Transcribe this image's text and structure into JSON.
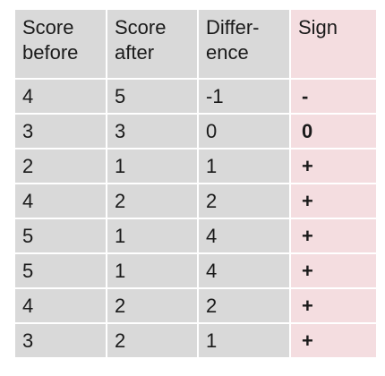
{
  "headers": {
    "before_line1": "Score",
    "before_line2": "before",
    "after_line1": "Score",
    "after_line2": "after",
    "diff_line1": "Differ-",
    "diff_line2": "ence",
    "sign": "Sign"
  },
  "rows": [
    {
      "before": "4",
      "after": "5",
      "difference": "-1",
      "sign": "-"
    },
    {
      "before": "3",
      "after": "3",
      "difference": "0",
      "sign": "0"
    },
    {
      "before": "2",
      "after": "1",
      "difference": "1",
      "sign": "+"
    },
    {
      "before": "4",
      "after": "2",
      "difference": "2",
      "sign": "+"
    },
    {
      "before": "5",
      "after": "1",
      "difference": "4",
      "sign": "+"
    },
    {
      "before": "5",
      "after": "1",
      "difference": "4",
      "sign": "+"
    },
    {
      "before": "4",
      "after": "2",
      "difference": "2",
      "sign": "+"
    },
    {
      "before": "3",
      "after": "2",
      "difference": "1",
      "sign": "+"
    }
  ],
  "colors": {
    "cell_gray": "#d9d9d9",
    "sign_column_pink": "#f4dde0"
  }
}
